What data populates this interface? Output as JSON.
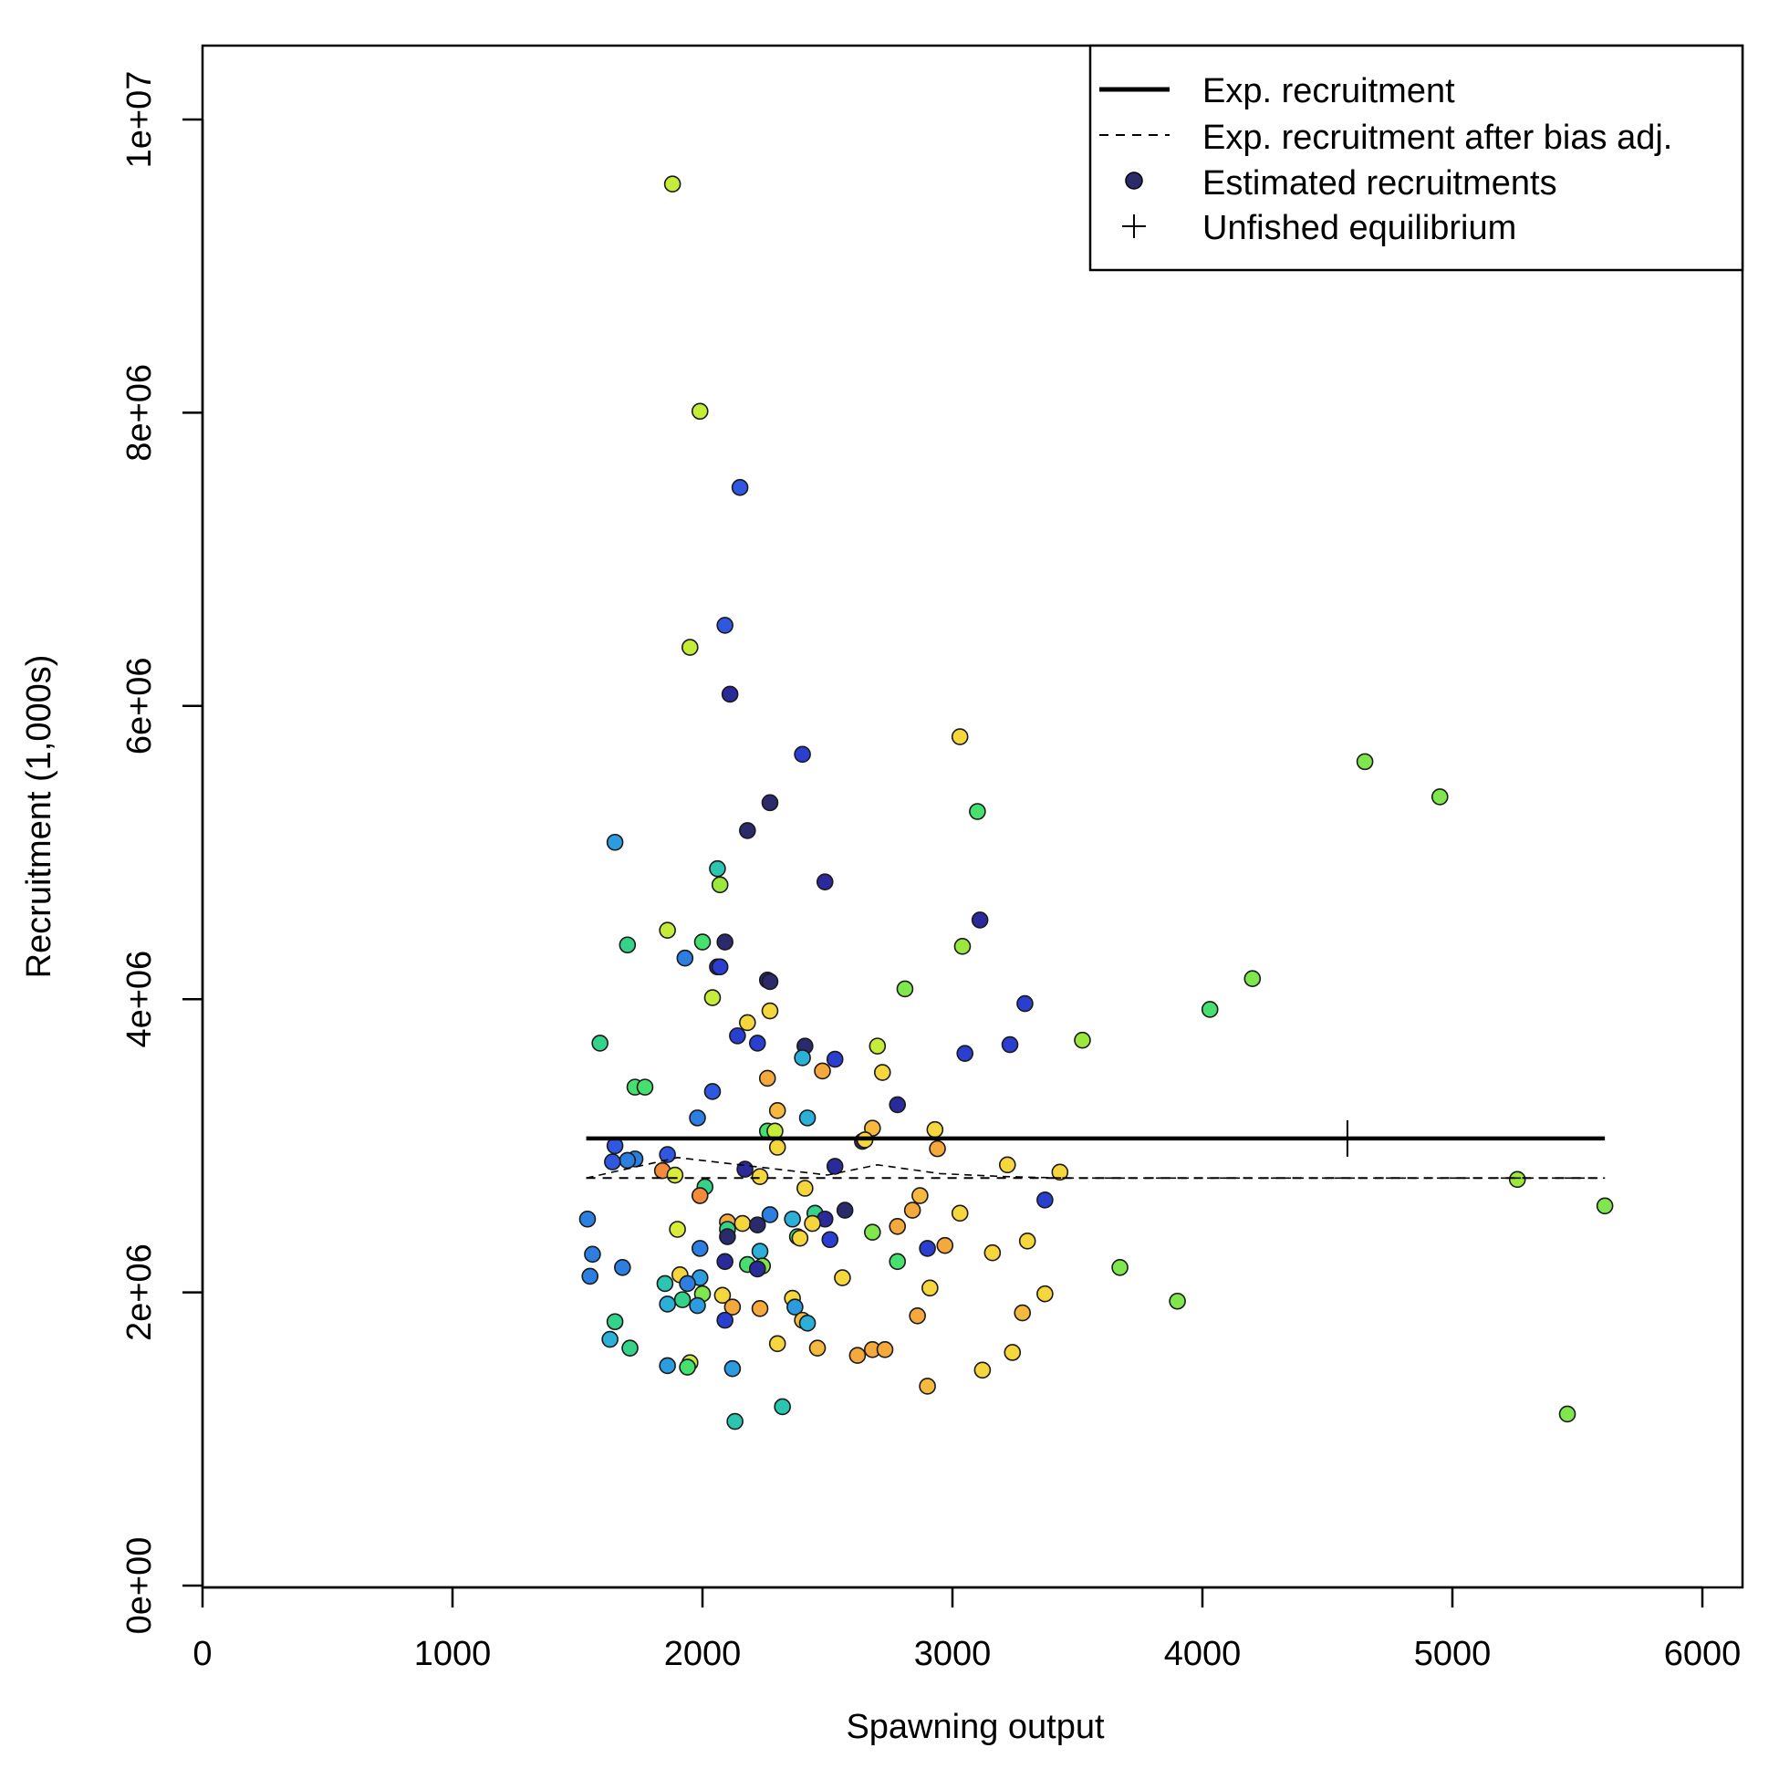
{
  "chart_data": {
    "type": "scatter",
    "title": "",
    "xlabel": "Spawning output",
    "ylabel": "Recruitment (1,000s)",
    "xlim": [
      0,
      6150
    ],
    "ylim": [
      0,
      10500000
    ],
    "x_ticks": [
      0,
      1000,
      2000,
      3000,
      4000,
      5000,
      6000
    ],
    "x_tick_labels": [
      "0",
      "1000",
      "2000",
      "3000",
      "4000",
      "5000",
      "6000"
    ],
    "y_ticks": [
      0,
      2000000,
      4000000,
      6000000,
      8000000,
      10000000
    ],
    "y_tick_labels": [
      "0e+00",
      "2e+06",
      "4e+06",
      "6e+06",
      "8e+06",
      "1e+07"
    ],
    "grid": false,
    "legend": {
      "position": "top-right",
      "entries": [
        {
          "label": "Exp. recruitment",
          "symbol": "thick-line"
        },
        {
          "label": "Exp. recruitment after bias adj.",
          "symbol": "dashed-line"
        },
        {
          "label": "Estimated recruitments",
          "symbol": "dot",
          "color": "#2b2b6b"
        },
        {
          "label": "Unfished equilibrium",
          "symbol": "plus"
        }
      ]
    },
    "exp_recruitment": {
      "x": [
        1535,
        5610
      ],
      "y": 3050000
    },
    "exp_recruitment_bias_adj": {
      "x": [
        1535,
        5610
      ],
      "y": 2780000
    },
    "bias_adj_path": [
      [
        1535,
        2780000
      ],
      [
        1900,
        2920000
      ],
      [
        2200,
        2860000
      ],
      [
        2500,
        2800000
      ],
      [
        2700,
        2870000
      ],
      [
        2950,
        2810000
      ],
      [
        3200,
        2790000
      ],
      [
        3450,
        2780000
      ],
      [
        5610,
        2780000
      ]
    ],
    "unfished_equilibrium": {
      "x": 4580,
      "y": 3050000
    },
    "series": [
      {
        "points": [
          {
            "x": 1880,
            "y": 9560000,
            "c": "#c6ec3a"
          },
          {
            "x": 1990,
            "y": 8010000,
            "c": "#c6ec3a"
          },
          {
            "x": 2150,
            "y": 7490000,
            "c": "#2f57e0"
          },
          {
            "x": 2090,
            "y": 6550000,
            "c": "#2f57e0"
          },
          {
            "x": 1950,
            "y": 6400000,
            "c": "#c6ec3a"
          },
          {
            "x": 2110,
            "y": 6080000,
            "c": "#2a2a9a"
          },
          {
            "x": 3030,
            "y": 5790000,
            "c": "#f5d63d"
          },
          {
            "x": 2400,
            "y": 5670000,
            "c": "#2a3fd0"
          },
          {
            "x": 4650,
            "y": 5620000,
            "c": "#7fe64d"
          },
          {
            "x": 4950,
            "y": 5380000,
            "c": "#7fe64d"
          },
          {
            "x": 2270,
            "y": 5340000,
            "c": "#2b2b6b"
          },
          {
            "x": 3100,
            "y": 5280000,
            "c": "#45e06e"
          },
          {
            "x": 2180,
            "y": 5150000,
            "c": "#2b2b6b"
          },
          {
            "x": 1650,
            "y": 5070000,
            "c": "#2c9be0"
          },
          {
            "x": 2060,
            "y": 4890000,
            "c": "#2cc6b0"
          },
          {
            "x": 2070,
            "y": 4780000,
            "c": "#9ae83e"
          },
          {
            "x": 2490,
            "y": 4800000,
            "c": "#2a2a9a"
          },
          {
            "x": 3110,
            "y": 4540000,
            "c": "#2a2a9a"
          },
          {
            "x": 1860,
            "y": 4470000,
            "c": "#c6ec3a"
          },
          {
            "x": 2000,
            "y": 4390000,
            "c": "#45e06e"
          },
          {
            "x": 2090,
            "y": 4390000,
            "c": "#2b2b6b"
          },
          {
            "x": 1700,
            "y": 4370000,
            "c": "#35d28a"
          },
          {
            "x": 3040,
            "y": 4360000,
            "c": "#9ae83e"
          },
          {
            "x": 1930,
            "y": 4280000,
            "c": "#2c7fe0"
          },
          {
            "x": 2060,
            "y": 4220000,
            "c": "#2a2a9a"
          },
          {
            "x": 2070,
            "y": 4220000,
            "c": "#2a3fd0"
          },
          {
            "x": 2260,
            "y": 4130000,
            "c": "#2b2b6b"
          },
          {
            "x": 2270,
            "y": 4120000,
            "c": "#2b2b6b"
          },
          {
            "x": 4200,
            "y": 4140000,
            "c": "#7fe64d"
          },
          {
            "x": 2810,
            "y": 4070000,
            "c": "#7fe64d"
          },
          {
            "x": 2040,
            "y": 4010000,
            "c": "#c6ec3a"
          },
          {
            "x": 3290,
            "y": 3970000,
            "c": "#2a3fd0"
          },
          {
            "x": 4030,
            "y": 3930000,
            "c": "#45e06e"
          },
          {
            "x": 2270,
            "y": 3920000,
            "c": "#f5d63d"
          },
          {
            "x": 2180,
            "y": 3840000,
            "c": "#f5d63d"
          },
          {
            "x": 2140,
            "y": 3750000,
            "c": "#2a3fd0"
          },
          {
            "x": 2220,
            "y": 3700000,
            "c": "#2a3fd0"
          },
          {
            "x": 3520,
            "y": 3720000,
            "c": "#9ae83e"
          },
          {
            "x": 1590,
            "y": 3700000,
            "c": "#35d28a"
          },
          {
            "x": 2410,
            "y": 3680000,
            "c": "#2b2b6b"
          },
          {
            "x": 2700,
            "y": 3680000,
            "c": "#c6ec3a"
          },
          {
            "x": 3230,
            "y": 3690000,
            "c": "#2a3fd0"
          },
          {
            "x": 3050,
            "y": 3630000,
            "c": "#2a3fd0"
          },
          {
            "x": 2400,
            "y": 3600000,
            "c": "#2cb0d8"
          },
          {
            "x": 2530,
            "y": 3590000,
            "c": "#2a3fd0"
          },
          {
            "x": 2480,
            "y": 3510000,
            "c": "#f5a93d"
          },
          {
            "x": 2720,
            "y": 3500000,
            "c": "#f5d63d"
          },
          {
            "x": 2260,
            "y": 3460000,
            "c": "#f5a93d"
          },
          {
            "x": 1730,
            "y": 3400000,
            "c": "#45e06e"
          },
          {
            "x": 1770,
            "y": 3400000,
            "c": "#45e06e"
          },
          {
            "x": 2040,
            "y": 3370000,
            "c": "#2f57e0"
          },
          {
            "x": 2780,
            "y": 3280000,
            "c": "#2a2a9a"
          },
          {
            "x": 2300,
            "y": 3240000,
            "c": "#f5b93d"
          },
          {
            "x": 1980,
            "y": 3190000,
            "c": "#2c7fe0"
          },
          {
            "x": 2420,
            "y": 3190000,
            "c": "#2cb0d8"
          },
          {
            "x": 2680,
            "y": 3120000,
            "c": "#f5b93d"
          },
          {
            "x": 2930,
            "y": 3110000,
            "c": "#f5d63d"
          },
          {
            "x": 2260,
            "y": 3100000,
            "c": "#45e06e"
          },
          {
            "x": 2290,
            "y": 3100000,
            "c": "#c6ec3a"
          },
          {
            "x": 2640,
            "y": 3030000,
            "c": "#2b2b6b"
          },
          {
            "x": 2650,
            "y": 3040000,
            "c": "#f5d63d"
          },
          {
            "x": 1650,
            "y": 3000000,
            "c": "#2f57e0"
          },
          {
            "x": 2300,
            "y": 2990000,
            "c": "#f5d63d"
          },
          {
            "x": 2940,
            "y": 2980000,
            "c": "#f5a93d"
          },
          {
            "x": 1860,
            "y": 2940000,
            "c": "#2f57e0"
          },
          {
            "x": 1730,
            "y": 2910000,
            "c": "#2c7fe0"
          },
          {
            "x": 1700,
            "y": 2900000,
            "c": "#2c7fe0"
          },
          {
            "x": 1640,
            "y": 2890000,
            "c": "#2f57e0"
          },
          {
            "x": 3220,
            "y": 2870000,
            "c": "#f5d63d"
          },
          {
            "x": 2530,
            "y": 2860000,
            "c": "#2a2a9a"
          },
          {
            "x": 2170,
            "y": 2840000,
            "c": "#2a2a9a"
          },
          {
            "x": 1840,
            "y": 2830000,
            "c": "#f58a3d"
          },
          {
            "x": 1890,
            "y": 2800000,
            "c": "#d9ec3a"
          },
          {
            "x": 2230,
            "y": 2790000,
            "c": "#f5d63d"
          },
          {
            "x": 3430,
            "y": 2820000,
            "c": "#f5d63d"
          },
          {
            "x": 5260,
            "y": 2770000,
            "c": "#9ae83e"
          },
          {
            "x": 2010,
            "y": 2720000,
            "c": "#35d28a"
          },
          {
            "x": 2410,
            "y": 2710000,
            "c": "#f5d63d"
          },
          {
            "x": 1990,
            "y": 2660000,
            "c": "#f58a3d"
          },
          {
            "x": 2870,
            "y": 2660000,
            "c": "#f5b93d"
          },
          {
            "x": 3370,
            "y": 2630000,
            "c": "#2a3fd0"
          },
          {
            "x": 5610,
            "y": 2590000,
            "c": "#7fe64d"
          },
          {
            "x": 2570,
            "y": 2560000,
            "c": "#2b2b6b"
          },
          {
            "x": 2840,
            "y": 2560000,
            "c": "#f5a93d"
          },
          {
            "x": 2450,
            "y": 2540000,
            "c": "#35d28a"
          },
          {
            "x": 2270,
            "y": 2530000,
            "c": "#2c7fe0"
          },
          {
            "x": 3030,
            "y": 2540000,
            "c": "#f5d63d"
          },
          {
            "x": 1540,
            "y": 2500000,
            "c": "#2c7fe0"
          },
          {
            "x": 2360,
            "y": 2500000,
            "c": "#2cb0d8"
          },
          {
            "x": 2490,
            "y": 2500000,
            "c": "#2a2a9a"
          },
          {
            "x": 2100,
            "y": 2480000,
            "c": "#f5a93d"
          },
          {
            "x": 2160,
            "y": 2470000,
            "c": "#f5d63d"
          },
          {
            "x": 2440,
            "y": 2470000,
            "c": "#f5d63d"
          },
          {
            "x": 2220,
            "y": 2460000,
            "c": "#2b2b6b"
          },
          {
            "x": 2780,
            "y": 2450000,
            "c": "#f5a93d"
          },
          {
            "x": 2100,
            "y": 2430000,
            "c": "#35d28a"
          },
          {
            "x": 1900,
            "y": 2430000,
            "c": "#d9ec3a"
          },
          {
            "x": 2680,
            "y": 2410000,
            "c": "#7fe64d"
          },
          {
            "x": 2100,
            "y": 2380000,
            "c": "#2b2b6b"
          },
          {
            "x": 2380,
            "y": 2380000,
            "c": "#45e06e"
          },
          {
            "x": 2390,
            "y": 2370000,
            "c": "#f5d63d"
          },
          {
            "x": 2510,
            "y": 2360000,
            "c": "#2a3fd0"
          },
          {
            "x": 3300,
            "y": 2350000,
            "c": "#f5d63d"
          },
          {
            "x": 1560,
            "y": 2260000,
            "c": "#2c7fe0"
          },
          {
            "x": 1990,
            "y": 2300000,
            "c": "#2c7fe0"
          },
          {
            "x": 2230,
            "y": 2280000,
            "c": "#2cb0d8"
          },
          {
            "x": 2900,
            "y": 2300000,
            "c": "#2a3fd0"
          },
          {
            "x": 2970,
            "y": 2320000,
            "c": "#f5a93d"
          },
          {
            "x": 3160,
            "y": 2270000,
            "c": "#f5d63d"
          },
          {
            "x": 2780,
            "y": 2210000,
            "c": "#45e06e"
          },
          {
            "x": 2090,
            "y": 2210000,
            "c": "#2a2a9a"
          },
          {
            "x": 1680,
            "y": 2170000,
            "c": "#2c7fe0"
          },
          {
            "x": 2180,
            "y": 2190000,
            "c": "#45e06e"
          },
          {
            "x": 2240,
            "y": 2180000,
            "c": "#7fe64d"
          },
          {
            "x": 2220,
            "y": 2160000,
            "c": "#2a2a9a"
          },
          {
            "x": 3670,
            "y": 2170000,
            "c": "#7fe64d"
          },
          {
            "x": 1550,
            "y": 2110000,
            "c": "#2c7fe0"
          },
          {
            "x": 1910,
            "y": 2120000,
            "c": "#f5d63d"
          },
          {
            "x": 1990,
            "y": 2100000,
            "c": "#2c9be0"
          },
          {
            "x": 2560,
            "y": 2100000,
            "c": "#f5d63d"
          },
          {
            "x": 1850,
            "y": 2060000,
            "c": "#2cc6b0"
          },
          {
            "x": 1940,
            "y": 2060000,
            "c": "#2c7fe0"
          },
          {
            "x": 2910,
            "y": 2030000,
            "c": "#f5d63d"
          },
          {
            "x": 2000,
            "y": 1990000,
            "c": "#7fe64d"
          },
          {
            "x": 2080,
            "y": 1980000,
            "c": "#f5d63d"
          },
          {
            "x": 3370,
            "y": 1990000,
            "c": "#f5d63d"
          },
          {
            "x": 2360,
            "y": 1960000,
            "c": "#f5d63d"
          },
          {
            "x": 1920,
            "y": 1950000,
            "c": "#35d28a"
          },
          {
            "x": 3900,
            "y": 1940000,
            "c": "#7fe64d"
          },
          {
            "x": 1860,
            "y": 1920000,
            "c": "#2cb0d8"
          },
          {
            "x": 1980,
            "y": 1910000,
            "c": "#2c9be0"
          },
          {
            "x": 2120,
            "y": 1900000,
            "c": "#f5a93d"
          },
          {
            "x": 2230,
            "y": 1890000,
            "c": "#f5a93d"
          },
          {
            "x": 2370,
            "y": 1900000,
            "c": "#2c9be0"
          },
          {
            "x": 3280,
            "y": 1860000,
            "c": "#f5b93d"
          },
          {
            "x": 2860,
            "y": 1840000,
            "c": "#f5a93d"
          },
          {
            "x": 2400,
            "y": 1810000,
            "c": "#f5b93d"
          },
          {
            "x": 2090,
            "y": 1810000,
            "c": "#2a3fd0"
          },
          {
            "x": 2420,
            "y": 1790000,
            "c": "#2cb0d8"
          },
          {
            "x": 1650,
            "y": 1800000,
            "c": "#35d28a"
          },
          {
            "x": 1630,
            "y": 1680000,
            "c": "#2cb0d8"
          },
          {
            "x": 2300,
            "y": 1650000,
            "c": "#f5d63d"
          },
          {
            "x": 1710,
            "y": 1620000,
            "c": "#35d28a"
          },
          {
            "x": 2460,
            "y": 1620000,
            "c": "#f5b93d"
          },
          {
            "x": 2680,
            "y": 1610000,
            "c": "#f5a93d"
          },
          {
            "x": 2730,
            "y": 1610000,
            "c": "#f5a93d"
          },
          {
            "x": 3240,
            "y": 1590000,
            "c": "#f5d63d"
          },
          {
            "x": 2620,
            "y": 1570000,
            "c": "#f5a93d"
          },
          {
            "x": 1950,
            "y": 1520000,
            "c": "#c6ec3a"
          },
          {
            "x": 1860,
            "y": 1500000,
            "c": "#2c9be0"
          },
          {
            "x": 1940,
            "y": 1490000,
            "c": "#45e06e"
          },
          {
            "x": 2120,
            "y": 1480000,
            "c": "#2c9be0"
          },
          {
            "x": 3120,
            "y": 1470000,
            "c": "#f5d63d"
          },
          {
            "x": 2900,
            "y": 1360000,
            "c": "#f5b93d"
          },
          {
            "x": 2320,
            "y": 1220000,
            "c": "#2cc6b0"
          },
          {
            "x": 5460,
            "y": 1170000,
            "c": "#7fe64d"
          },
          {
            "x": 2130,
            "y": 1120000,
            "c": "#2cc6b0"
          }
        ]
      }
    ]
  }
}
